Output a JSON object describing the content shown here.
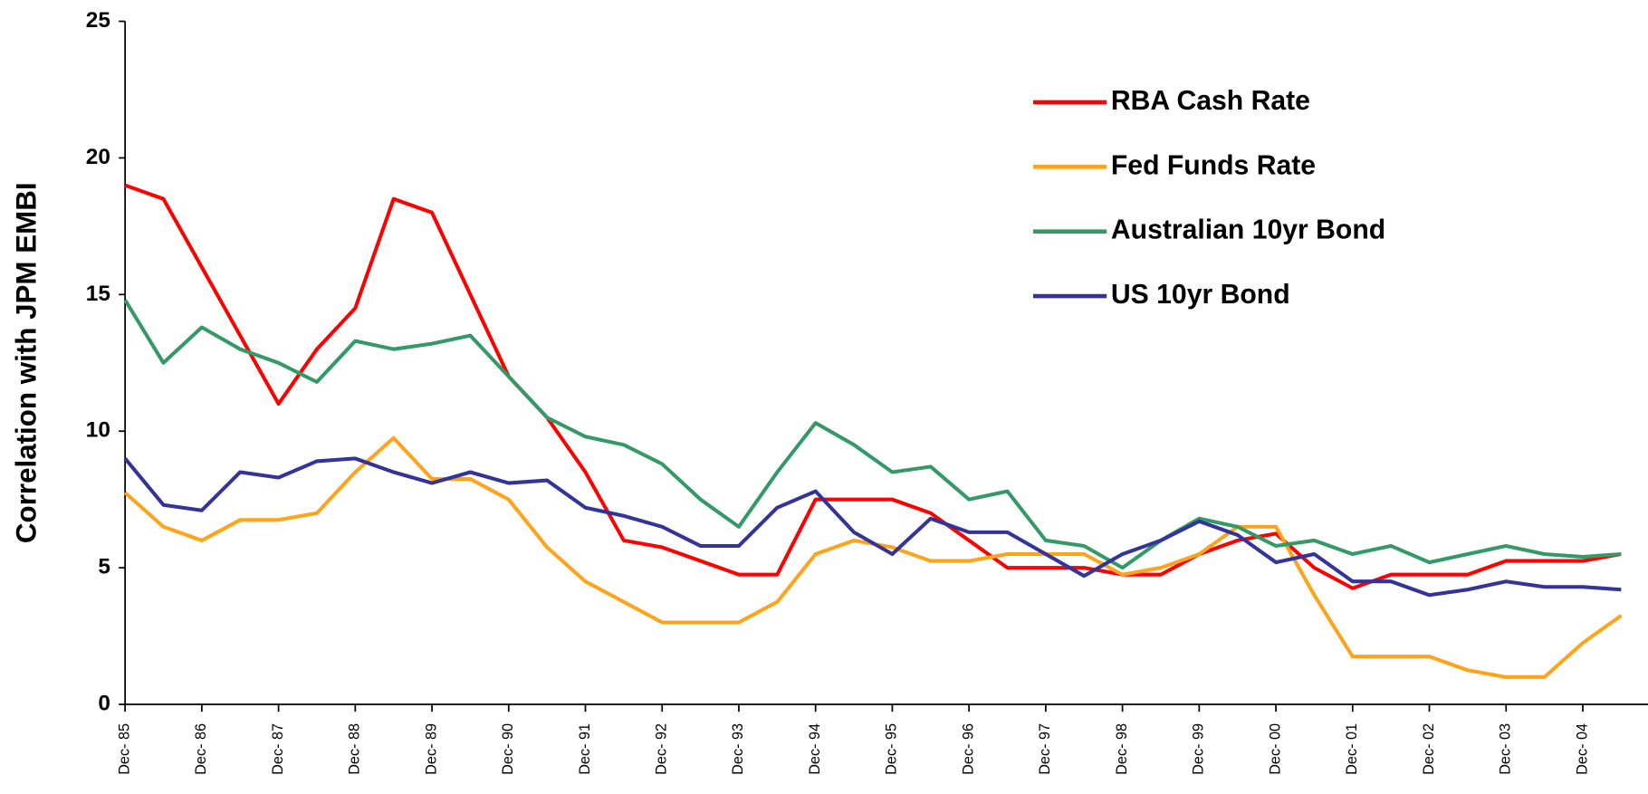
{
  "chart_data": {
    "type": "line",
    "y_label": "Correlation with JPM EMBI",
    "x": [
      1985.92,
      1986.42,
      1986.92,
      1987.42,
      1987.92,
      1988.42,
      1988.92,
      1989.42,
      1989.92,
      1990.42,
      1990.92,
      1991.42,
      1991.92,
      1992.42,
      1992.92,
      1993.42,
      1993.92,
      1994.42,
      1994.92,
      1995.42,
      1995.92,
      1996.42,
      1996.92,
      1997.42,
      1997.92,
      1998.42,
      1998.92,
      1999.42,
      1999.92,
      2000.42,
      2000.92,
      2001.42,
      2001.92,
      2002.42,
      2002.92,
      2003.42,
      2003.92,
      2004.42,
      2004.92,
      2005.42
    ],
    "series": [
      {
        "name": "RBA Cash Rate",
        "color": "#ff0000",
        "values": [
          19,
          18.5,
          16,
          13.5,
          11,
          13,
          14.5,
          18.5,
          18,
          15,
          12,
          10.5,
          8.5,
          6,
          5.75,
          5.25,
          4.75,
          4.75,
          7.5,
          7.5,
          7.5,
          7,
          6,
          5,
          5,
          5,
          4.75,
          4.75,
          5.5,
          6,
          6.25,
          5,
          4.25,
          4.75,
          4.75,
          4.75,
          5.25,
          5.25,
          5.25,
          5.5
        ]
      },
      {
        "name": "Fed Funds Rate",
        "color": "#ffa31a",
        "values": [
          7.75,
          6.5,
          6,
          6.75,
          6.75,
          7,
          8.5,
          9.75,
          8.25,
          8.25,
          7.5,
          5.75,
          4.5,
          3.75,
          3,
          3,
          3,
          3.75,
          5.5,
          6,
          5.75,
          5.25,
          5.25,
          5.5,
          5.5,
          5.5,
          4.75,
          5,
          5.5,
          6.5,
          6.5,
          4,
          1.75,
          1.75,
          1.75,
          1.25,
          1,
          1,
          2.25,
          3.25
        ]
      },
      {
        "name": "Australian 10yr Bond",
        "color": "#339966",
        "values": [
          14.8,
          12.5,
          13.8,
          13,
          12.5,
          11.8,
          13.3,
          13,
          13.2,
          13.5,
          12,
          10.5,
          9.8,
          9.5,
          8.8,
          7.5,
          6.5,
          8.5,
          10.3,
          9.5,
          8.5,
          8.7,
          7.5,
          7.8,
          6,
          5.8,
          5,
          6,
          6.8,
          6.5,
          5.8,
          6,
          5.5,
          5.8,
          5.2,
          5.5,
          5.8,
          5.5,
          5.4,
          5.5
        ]
      },
      {
        "name": "US 10yr Bond",
        "color": "#333399",
        "values": [
          9,
          7.3,
          7.1,
          8.5,
          8.3,
          8.9,
          9,
          8.5,
          8.1,
          8.5,
          8.1,
          8.2,
          7.2,
          6.9,
          6.5,
          5.8,
          5.8,
          7.2,
          7.8,
          6.3,
          5.5,
          6.8,
          6.3,
          6.3,
          5.5,
          4.7,
          5.5,
          6,
          6.7,
          6.2,
          5.2,
          5.5,
          4.5,
          4.5,
          4,
          4.2,
          4.5,
          4.3,
          4.3,
          4.2
        ]
      }
    ],
    "xlim": [
      1985.92,
      2005.77
    ],
    "xticks": [
      {
        "value": 1985.92,
        "label": "Dec- 85"
      },
      {
        "value": 1986.92,
        "label": "Dec- 86"
      },
      {
        "value": 1987.92,
        "label": "Dec- 87"
      },
      {
        "value": 1988.92,
        "label": "Dec- 88"
      },
      {
        "value": 1989.92,
        "label": "Dec- 89"
      },
      {
        "value": 1990.92,
        "label": "Dec- 90"
      },
      {
        "value": 1991.92,
        "label": "Dec- 91"
      },
      {
        "value": 1992.92,
        "label": "Dec- 92"
      },
      {
        "value": 1993.92,
        "label": "Dec- 93"
      },
      {
        "value": 1994.92,
        "label": "Dec- 94"
      },
      {
        "value": 1995.92,
        "label": "Dec- 95"
      },
      {
        "value": 1996.92,
        "label": "Dec- 96"
      },
      {
        "value": 1997.92,
        "label": "Dec- 97"
      },
      {
        "value": 1998.92,
        "label": "Dec- 98"
      },
      {
        "value": 1999.92,
        "label": "Dec- 99"
      },
      {
        "value": 2000.92,
        "label": "Dec- 00"
      },
      {
        "value": 2001.92,
        "label": "Dec- 01"
      },
      {
        "value": 2002.92,
        "label": "Dec- 02"
      },
      {
        "value": 2003.92,
        "label": "Dec- 03"
      },
      {
        "value": 2004.92,
        "label": "Dec- 04"
      }
    ],
    "ylim": [
      0,
      25
    ],
    "yticks": [
      0,
      5,
      10,
      15,
      20,
      25
    ],
    "grid": false,
    "legend": "upper right"
  }
}
